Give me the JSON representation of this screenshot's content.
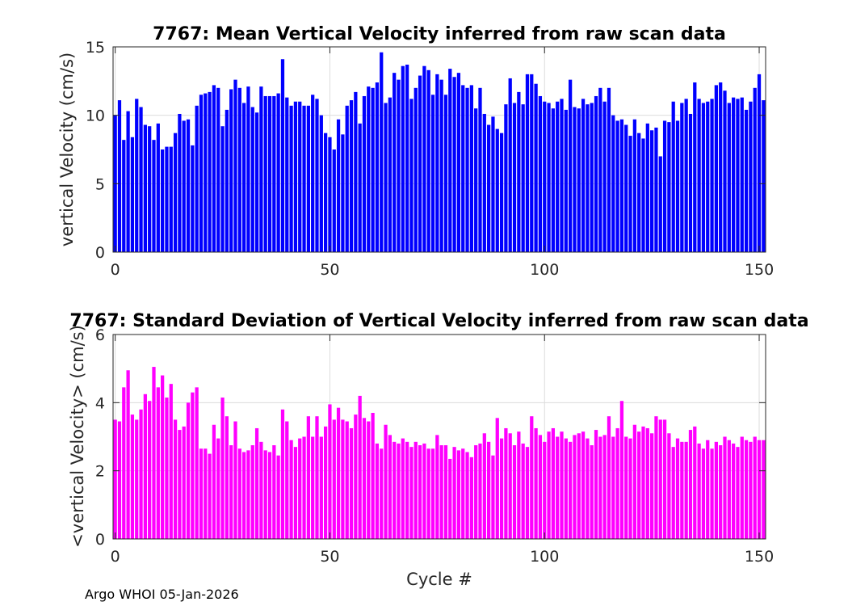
{
  "chart_data": [
    {
      "type": "bar",
      "title": "7767: Mean Vertical Velocity inferred from raw scan data",
      "xlabel": "",
      "ylabel": "vertical Velocity (cm/s)",
      "xlim": [
        -0.5,
        151.5
      ],
      "ylim": [
        0,
        15
      ],
      "xticks": [
        0,
        50,
        100,
        150
      ],
      "yticks": [
        0,
        5,
        10,
        15
      ],
      "grid": true,
      "color": "#0000ff",
      "x_start": 0,
      "values": [
        10.0,
        11.1,
        8.2,
        10.3,
        8.4,
        11.2,
        10.6,
        9.3,
        9.2,
        8.2,
        9.4,
        7.5,
        7.7,
        7.7,
        8.7,
        10.1,
        9.6,
        9.7,
        7.8,
        10.7,
        11.5,
        11.6,
        11.7,
        12.2,
        12.0,
        9.2,
        10.4,
        11.9,
        12.6,
        12.0,
        10.9,
        12.1,
        10.6,
        10.2,
        12.1,
        11.4,
        11.4,
        11.4,
        11.6,
        14.1,
        11.3,
        10.7,
        11.0,
        11.0,
        10.7,
        10.7,
        11.5,
        11.2,
        10.0,
        8.7,
        8.4,
        7.5,
        9.7,
        8.6,
        10.7,
        11.1,
        11.7,
        9.4,
        11.4,
        12.1,
        12.0,
        12.4,
        14.6,
        10.9,
        11.3,
        13.1,
        12.6,
        13.6,
        13.7,
        11.2,
        12.0,
        12.9,
        13.6,
        13.3,
        11.5,
        13.0,
        12.6,
        11.5,
        13.4,
        12.8,
        13.1,
        12.2,
        12.0,
        12.2,
        10.5,
        12.0,
        10.1,
        9.3,
        9.9,
        9.0,
        8.7,
        10.8,
        12.7,
        10.9,
        11.7,
        10.8,
        13.0,
        13.0,
        12.3,
        11.4,
        11.0,
        10.9,
        10.5,
        11.0,
        11.2,
        10.4,
        12.6,
        10.6,
        10.5,
        11.2,
        10.8,
        10.9,
        11.4,
        12.0,
        11.0,
        12.0,
        10.0,
        9.6,
        9.7,
        9.3,
        8.5,
        9.7,
        8.7,
        8.3,
        9.4,
        8.9,
        9.1,
        7.0,
        9.6,
        9.5,
        11.0,
        9.6,
        10.9,
        11.2,
        10.1,
        12.4,
        11.2,
        10.9,
        11.0,
        11.2,
        12.2,
        12.4,
        11.8,
        10.9,
        11.3,
        11.2,
        11.3,
        10.4,
        11.0,
        12.0,
        13.0,
        11.1
      ]
    },
    {
      "type": "bar",
      "title": "7767: Standard Deviation of Vertical Velocity inferred from raw scan data",
      "xlabel": "Cycle #",
      "ylabel": "<vertical Velocity> (cm/s)",
      "xlim": [
        -0.5,
        151.5
      ],
      "ylim": [
        0,
        6
      ],
      "xticks": [
        0,
        50,
        100,
        150
      ],
      "yticks": [
        0,
        2,
        4,
        6
      ],
      "grid": true,
      "color": "#ff00ff",
      "x_start": 0,
      "values": [
        3.5,
        3.45,
        4.45,
        4.95,
        3.65,
        3.5,
        3.8,
        4.25,
        4.05,
        5.05,
        4.45,
        4.8,
        4.15,
        4.55,
        3.5,
        3.2,
        3.3,
        4.0,
        4.3,
        4.45,
        2.65,
        2.65,
        2.5,
        3.35,
        2.95,
        4.15,
        3.6,
        2.75,
        3.45,
        2.65,
        2.55,
        2.6,
        2.75,
        3.25,
        2.85,
        2.6,
        2.55,
        2.75,
        2.45,
        3.8,
        3.45,
        2.9,
        2.7,
        2.95,
        3.0,
        3.6,
        3.0,
        3.6,
        3.0,
        3.3,
        3.95,
        3.5,
        3.85,
        3.5,
        3.45,
        3.25,
        3.65,
        4.2,
        3.55,
        3.45,
        3.7,
        2.8,
        2.65,
        3.35,
        3.05,
        2.85,
        2.8,
        2.95,
        2.85,
        2.7,
        2.85,
        2.75,
        2.8,
        2.65,
        2.65,
        3.05,
        2.75,
        2.75,
        2.35,
        2.7,
        2.6,
        2.65,
        2.55,
        2.4,
        2.75,
        2.8,
        3.1,
        2.85,
        2.45,
        3.55,
        2.95,
        3.25,
        3.1,
        2.75,
        3.15,
        2.8,
        2.7,
        3.6,
        3.25,
        3.05,
        2.85,
        3.15,
        3.25,
        3.0,
        3.15,
        2.95,
        2.85,
        3.05,
        3.1,
        3.15,
        2.95,
        2.75,
        3.2,
        3.0,
        3.05,
        3.6,
        3.0,
        3.25,
        4.05,
        3.0,
        2.95,
        3.35,
        3.15,
        3.3,
        3.25,
        3.1,
        3.6,
        3.5,
        3.5,
        3.1,
        2.7,
        2.95,
        2.85,
        2.85,
        3.2,
        3.3,
        2.8,
        2.65,
        2.9,
        2.65,
        2.85,
        2.75,
        3.0,
        2.9,
        2.8,
        2.7,
        3.0,
        2.9,
        2.85,
        3.0,
        2.9,
        2.9
      ]
    }
  ],
  "footer": {
    "text": "Argo WHOI 05-Jan-2026"
  }
}
